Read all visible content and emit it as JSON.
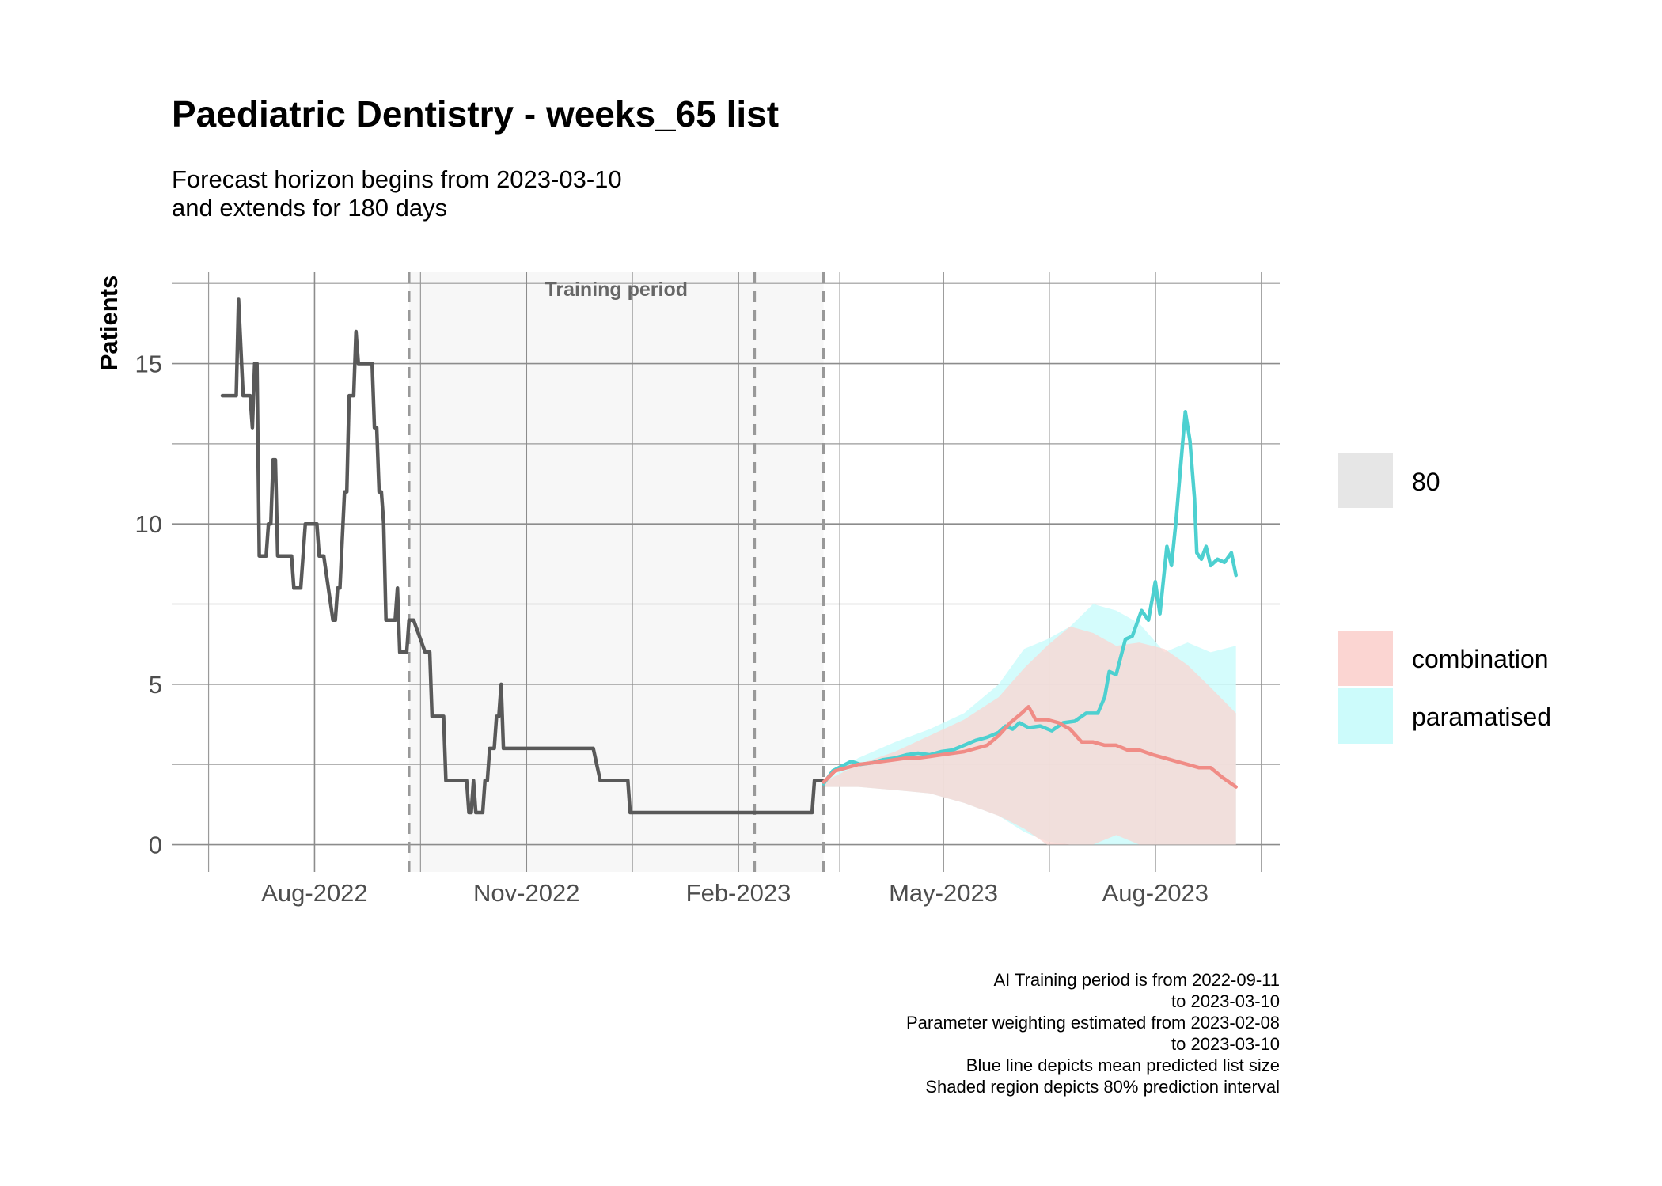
{
  "chart_data": {
    "type": "line",
    "title": "Paediatric Dentistry - weeks_65 list",
    "subtitle": [
      "Forecast horizon begins from 2023-03-10",
      "and extends for 180 days"
    ],
    "ylabel": "Patients",
    "xlabel": "",
    "x_range": [
      "2022-05-31",
      "2023-09-24"
    ],
    "ylim": [
      -0.85,
      17.85
    ],
    "y_ticks": [
      0,
      5,
      10,
      15
    ],
    "x_ticks": [
      {
        "date": "2022-08-01",
        "label": "Aug-2022"
      },
      {
        "date": "2022-11-01",
        "label": "Nov-2022"
      },
      {
        "date": "2023-02-01",
        "label": "Feb-2023"
      },
      {
        "date": "2023-05-01",
        "label": "May-2023"
      },
      {
        "date": "2023-08-01",
        "label": "Aug-2023"
      }
    ],
    "grid": true,
    "training_period": {
      "start": "2022-09-11",
      "end": "2023-03-10",
      "label": "Training period"
    },
    "vlines": [
      "2022-09-11",
      "2023-02-08",
      "2023-03-10"
    ],
    "series": [
      {
        "name": "actual",
        "color": "#595959",
        "points": [
          [
            "2022-06-22",
            14
          ],
          [
            "2022-06-28",
            14
          ],
          [
            "2022-06-29",
            17
          ],
          [
            "2022-07-01",
            14
          ],
          [
            "2022-07-04",
            14
          ],
          [
            "2022-07-05",
            13
          ],
          [
            "2022-07-06",
            15
          ],
          [
            "2022-07-07",
            15
          ],
          [
            "2022-07-08",
            9
          ],
          [
            "2022-07-11",
            9
          ],
          [
            "2022-07-12",
            10
          ],
          [
            "2022-07-13",
            10
          ],
          [
            "2022-07-14",
            12
          ],
          [
            "2022-07-15",
            12
          ],
          [
            "2022-07-16",
            9
          ],
          [
            "2022-07-22",
            9
          ],
          [
            "2022-07-23",
            8
          ],
          [
            "2022-07-26",
            8
          ],
          [
            "2022-07-28",
            10
          ],
          [
            "2022-08-02",
            10
          ],
          [
            "2022-08-03",
            9
          ],
          [
            "2022-08-05",
            9
          ],
          [
            "2022-08-09",
            7
          ],
          [
            "2022-08-10",
            7
          ],
          [
            "2022-08-11",
            8
          ],
          [
            "2022-08-12",
            8
          ],
          [
            "2022-08-14",
            11
          ],
          [
            "2022-08-15",
            11
          ],
          [
            "2022-08-16",
            14
          ],
          [
            "2022-08-18",
            14
          ],
          [
            "2022-08-19",
            16
          ],
          [
            "2022-08-20",
            15
          ],
          [
            "2022-08-23",
            15
          ],
          [
            "2022-08-26",
            15
          ],
          [
            "2022-08-27",
            13
          ],
          [
            "2022-08-28",
            13
          ],
          [
            "2022-08-29",
            11
          ],
          [
            "2022-08-30",
            11
          ],
          [
            "2022-08-31",
            10
          ],
          [
            "2022-09-01",
            7
          ],
          [
            "2022-09-05",
            7
          ],
          [
            "2022-09-06",
            8
          ],
          [
            "2022-09-07",
            6
          ],
          [
            "2022-09-10",
            6
          ],
          [
            "2022-09-11",
            7
          ],
          [
            "2022-09-13",
            7
          ],
          [
            "2022-09-18",
            6
          ],
          [
            "2022-09-20",
            6
          ],
          [
            "2022-09-21",
            4
          ],
          [
            "2022-09-26",
            4
          ],
          [
            "2022-09-27",
            2
          ],
          [
            "2022-10-06",
            2
          ],
          [
            "2022-10-07",
            1
          ],
          [
            "2022-10-08",
            1
          ],
          [
            "2022-10-09",
            2
          ],
          [
            "2022-10-10",
            1
          ],
          [
            "2022-10-13",
            1
          ],
          [
            "2022-10-14",
            2
          ],
          [
            "2022-10-15",
            2
          ],
          [
            "2022-10-16",
            3
          ],
          [
            "2022-10-18",
            3
          ],
          [
            "2022-10-19",
            4
          ],
          [
            "2022-10-20",
            4
          ],
          [
            "2022-10-21",
            5
          ],
          [
            "2022-10-22",
            3
          ],
          [
            "2022-11-30",
            3
          ],
          [
            "2022-12-03",
            2
          ],
          [
            "2022-12-15",
            2
          ],
          [
            "2022-12-16",
            1
          ],
          [
            "2023-03-05",
            1
          ],
          [
            "2023-03-06",
            2
          ],
          [
            "2023-03-10",
            2
          ]
        ]
      },
      {
        "name": "paramatised",
        "color": "#4DD0D0",
        "points": [
          [
            "2023-03-10",
            1.9
          ],
          [
            "2023-03-14",
            2.3
          ],
          [
            "2023-03-18",
            2.45
          ],
          [
            "2023-03-22",
            2.6
          ],
          [
            "2023-03-26",
            2.5
          ],
          [
            "2023-03-31",
            2.55
          ],
          [
            "2023-04-05",
            2.65
          ],
          [
            "2023-04-10",
            2.7
          ],
          [
            "2023-04-15",
            2.8
          ],
          [
            "2023-04-20",
            2.85
          ],
          [
            "2023-04-25",
            2.8
          ],
          [
            "2023-04-30",
            2.9
          ],
          [
            "2023-05-05",
            2.95
          ],
          [
            "2023-05-10",
            3.1
          ],
          [
            "2023-05-15",
            3.25
          ],
          [
            "2023-05-20",
            3.35
          ],
          [
            "2023-05-25",
            3.5
          ],
          [
            "2023-05-28",
            3.7
          ],
          [
            "2023-05-31",
            3.6
          ],
          [
            "2023-06-03",
            3.8
          ],
          [
            "2023-06-07",
            3.65
          ],
          [
            "2023-06-12",
            3.7
          ],
          [
            "2023-06-17",
            3.55
          ],
          [
            "2023-06-22",
            3.8
          ],
          [
            "2023-06-27",
            3.85
          ],
          [
            "2023-07-02",
            4.1
          ],
          [
            "2023-07-07",
            4.1
          ],
          [
            "2023-07-10",
            4.6
          ],
          [
            "2023-07-12",
            5.4
          ],
          [
            "2023-07-15",
            5.3
          ],
          [
            "2023-07-19",
            6.4
          ],
          [
            "2023-07-22",
            6.5
          ],
          [
            "2023-07-26",
            7.3
          ],
          [
            "2023-07-29",
            7.0
          ],
          [
            "2023-08-01",
            8.2
          ],
          [
            "2023-08-03",
            7.2
          ],
          [
            "2023-08-06",
            9.3
          ],
          [
            "2023-08-08",
            8.7
          ],
          [
            "2023-08-10",
            10.1
          ],
          [
            "2023-08-12",
            11.8
          ],
          [
            "2023-08-14",
            13.5
          ],
          [
            "2023-08-16",
            12.6
          ],
          [
            "2023-08-18",
            10.8
          ],
          [
            "2023-08-19",
            9.1
          ],
          [
            "2023-08-21",
            8.9
          ],
          [
            "2023-08-23",
            9.3
          ],
          [
            "2023-08-25",
            8.7
          ],
          [
            "2023-08-28",
            8.9
          ],
          [
            "2023-08-31",
            8.8
          ],
          [
            "2023-09-03",
            9.1
          ],
          [
            "2023-09-05",
            8.4
          ]
        ]
      },
      {
        "name": "combination",
        "color": "#F08C86",
        "points": [
          [
            "2023-03-10",
            1.95
          ],
          [
            "2023-03-15",
            2.3
          ],
          [
            "2023-03-20",
            2.4
          ],
          [
            "2023-03-25",
            2.5
          ],
          [
            "2023-03-31",
            2.55
          ],
          [
            "2023-04-05",
            2.6
          ],
          [
            "2023-04-10",
            2.65
          ],
          [
            "2023-04-15",
            2.7
          ],
          [
            "2023-04-20",
            2.7
          ],
          [
            "2023-04-25",
            2.75
          ],
          [
            "2023-04-30",
            2.8
          ],
          [
            "2023-05-05",
            2.85
          ],
          [
            "2023-05-10",
            2.9
          ],
          [
            "2023-05-15",
            3.0
          ],
          [
            "2023-05-20",
            3.1
          ],
          [
            "2023-05-25",
            3.4
          ],
          [
            "2023-05-30",
            3.8
          ],
          [
            "2023-06-04",
            4.1
          ],
          [
            "2023-06-07",
            4.3
          ],
          [
            "2023-06-10",
            3.9
          ],
          [
            "2023-06-15",
            3.9
          ],
          [
            "2023-06-20",
            3.8
          ],
          [
            "2023-06-25",
            3.6
          ],
          [
            "2023-06-30",
            3.2
          ],
          [
            "2023-07-05",
            3.2
          ],
          [
            "2023-07-10",
            3.1
          ],
          [
            "2023-07-15",
            3.1
          ],
          [
            "2023-07-20",
            2.95
          ],
          [
            "2023-07-25",
            2.95
          ],
          [
            "2023-07-31",
            2.8
          ],
          [
            "2023-08-05",
            2.7
          ],
          [
            "2023-08-10",
            2.6
          ],
          [
            "2023-08-15",
            2.5
          ],
          [
            "2023-08-20",
            2.4
          ],
          [
            "2023-08-25",
            2.4
          ],
          [
            "2023-08-30",
            2.1
          ],
          [
            "2023-09-05",
            1.8
          ]
        ]
      }
    ],
    "intervals": [
      {
        "name": "paramatised",
        "level": 80,
        "color": "#CCFBFB",
        "points": [
          [
            "2023-03-10",
            1.8,
            1.95
          ],
          [
            "2023-03-25",
            1.8,
            2.7
          ],
          [
            "2023-04-10",
            1.7,
            3.2
          ],
          [
            "2023-04-25",
            1.6,
            3.6
          ],
          [
            "2023-05-10",
            1.3,
            4.1
          ],
          [
            "2023-05-25",
            0.9,
            5.0
          ],
          [
            "2023-06-05",
            0.4,
            6.1
          ],
          [
            "2023-06-15",
            0.1,
            6.4
          ],
          [
            "2023-06-25",
            0.0,
            6.8
          ],
          [
            "2023-07-05",
            0.0,
            7.5
          ],
          [
            "2023-07-15",
            0.0,
            7.3
          ],
          [
            "2023-07-25",
            0.0,
            6.9
          ],
          [
            "2023-08-05",
            0.0,
            6.0
          ],
          [
            "2023-08-15",
            0.0,
            6.3
          ],
          [
            "2023-08-25",
            0.0,
            6.0
          ],
          [
            "2023-09-05",
            0.0,
            6.2
          ]
        ]
      },
      {
        "name": "combination",
        "level": 80,
        "color": "#FBD5D2",
        "points": [
          [
            "2023-03-10",
            1.8,
            1.95
          ],
          [
            "2023-03-25",
            1.8,
            2.5
          ],
          [
            "2023-04-10",
            1.7,
            2.9
          ],
          [
            "2023-04-25",
            1.6,
            3.4
          ],
          [
            "2023-05-10",
            1.3,
            3.9
          ],
          [
            "2023-05-25",
            0.9,
            4.6
          ],
          [
            "2023-06-05",
            0.5,
            5.5
          ],
          [
            "2023-06-15",
            0.0,
            6.2
          ],
          [
            "2023-06-25",
            0.0,
            6.8
          ],
          [
            "2023-07-05",
            0.0,
            6.6
          ],
          [
            "2023-07-15",
            0.3,
            6.2
          ],
          [
            "2023-07-25",
            0.0,
            6.3
          ],
          [
            "2023-08-05",
            0.0,
            6.1
          ],
          [
            "2023-08-15",
            0.0,
            5.6
          ],
          [
            "2023-08-25",
            0.0,
            4.9
          ],
          [
            "2023-09-05",
            0.0,
            4.1
          ]
        ]
      }
    ],
    "legend": {
      "placement": "right",
      "interval_label": "80",
      "items": [
        {
          "label": "combination",
          "color": "#FBD5D2"
        },
        {
          "label": "paramatised",
          "color": "#CCFBFB"
        }
      ]
    },
    "caption": [
      "AI Training period is from 2022-09-11",
      "to 2023-03-10",
      "Parameter weighting estimated from 2023-02-08",
      "to 2023-03-10",
      "Blue line depicts mean predicted list size",
      "Shaded region depicts 80% prediction interval"
    ]
  }
}
